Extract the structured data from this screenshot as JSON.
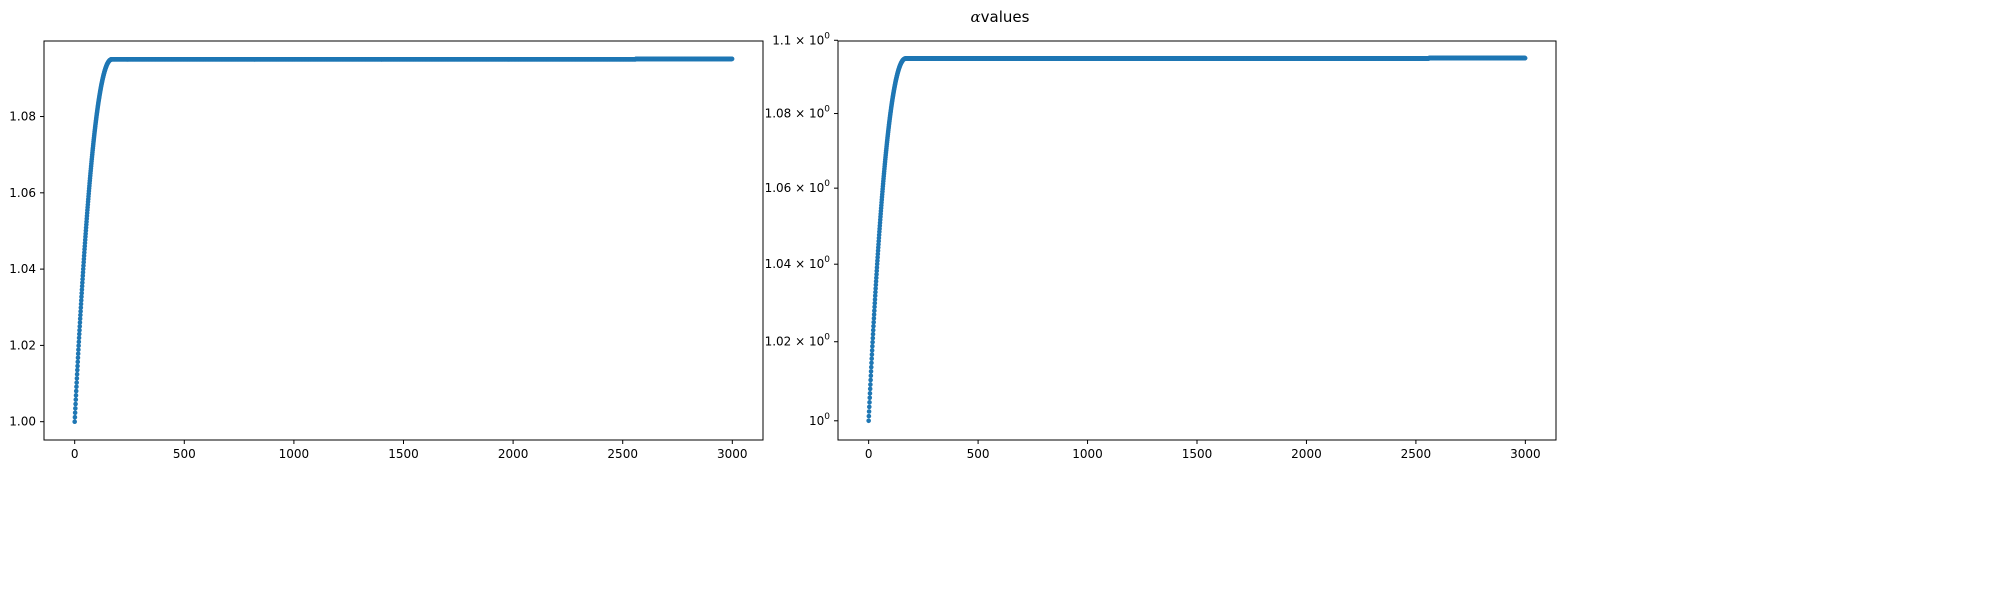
{
  "figure": {
    "title_symbol": "α",
    "title_text": "values"
  },
  "chart_data": [
    {
      "type": "scatter",
      "title": "",
      "xlabel": "",
      "ylabel": "",
      "color": "#1f77b4",
      "yscale": "linear",
      "xlim": [
        -140,
        3140
      ],
      "ylim": [
        0.9952,
        1.0998
      ],
      "xticks": [
        0,
        500,
        1000,
        1500,
        2000,
        2500,
        3000
      ],
      "yticks": [
        1.0,
        1.02,
        1.04,
        1.06,
        1.08
      ],
      "ytick_labels": [
        "1.00",
        "1.02",
        "1.04",
        "1.06",
        "1.08"
      ],
      "grid": false,
      "legend": "none",
      "curve": {
        "n_points": 3000,
        "x_start": 0,
        "y_start": 1.0,
        "y_plateau": 1.095,
        "x_plateau": 170,
        "x_step": 2560,
        "y_after_step": 1.0951,
        "x_end": 2999
      }
    },
    {
      "type": "scatter",
      "title": "",
      "xlabel": "",
      "ylabel": "",
      "color": "#1f77b4",
      "yscale": "log",
      "xlim": [
        -140,
        3140
      ],
      "ylim": [
        0.9952,
        1.0998
      ],
      "xticks": [
        0,
        500,
        1000,
        1500,
        2000,
        2500,
        3000
      ],
      "yticks": [
        1.0,
        1.02,
        1.04,
        1.06,
        1.08,
        1.1
      ],
      "ytick_labels": [
        {
          "base": "10",
          "exp": "0",
          "prefix": ""
        },
        {
          "base": "10",
          "exp": "0",
          "prefix": "1.02 × "
        },
        {
          "base": "10",
          "exp": "0",
          "prefix": "1.04 × "
        },
        {
          "base": "10",
          "exp": "0",
          "prefix": "1.06 × "
        },
        {
          "base": "10",
          "exp": "0",
          "prefix": "1.08 × "
        },
        {
          "base": "10",
          "exp": "0",
          "prefix": "1.1 × "
        }
      ],
      "grid": false,
      "legend": "none",
      "curve": {
        "n_points": 3000,
        "x_start": 0,
        "y_start": 1.0,
        "y_plateau": 1.095,
        "x_plateau": 170,
        "x_step": 2560,
        "y_after_step": 1.0951,
        "x_end": 2999
      }
    }
  ]
}
